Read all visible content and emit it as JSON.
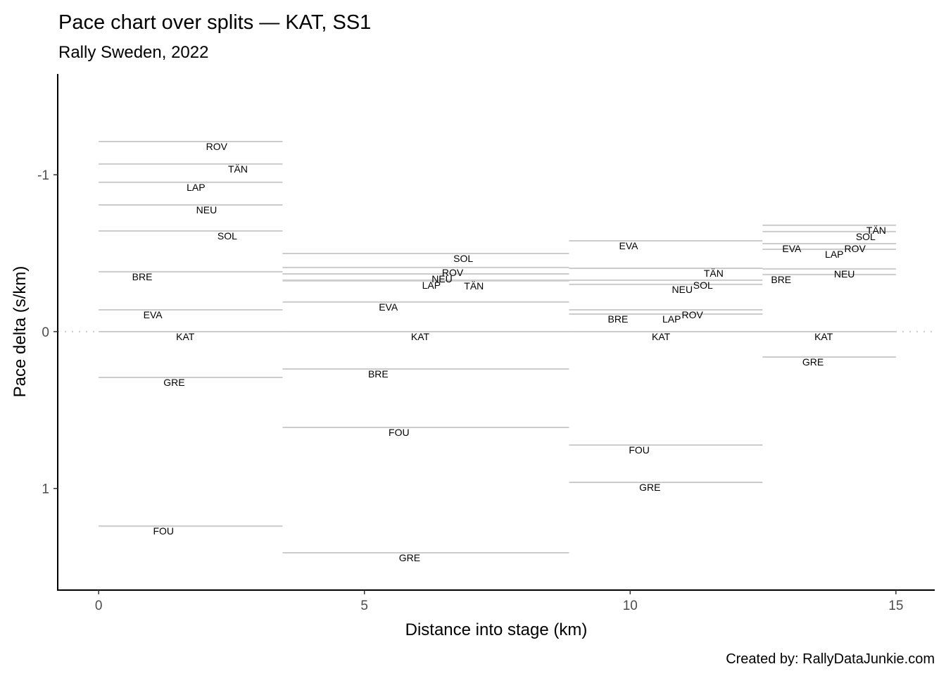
{
  "chart_data": {
    "type": "line",
    "title": "Pace chart over splits — KAT, SS1",
    "subtitle": "Rally Sweden, 2022",
    "xlabel": "Distance into stage (km)",
    "ylabel": "Pace delta (s/km)",
    "caption": "Created by: RallyDataJunkie.com",
    "xlim": [
      -0.77,
      15.73
    ],
    "ylim": [
      -1.643,
      1.648
    ],
    "y_reversed": true,
    "x_ticks": [
      0,
      5,
      10,
      15
    ],
    "x_tick_labels": [
      "0",
      "5",
      "10",
      "15"
    ],
    "y_ticks": [
      -1,
      0,
      1
    ],
    "y_tick_labels": [
      "-1",
      "0",
      "1"
    ],
    "reference_line": 0,
    "grid": false,
    "colors": {
      "segment": "#cccccc",
      "reference": "#cccccc",
      "axis": "#000000",
      "text": "#000000"
    },
    "splits": [
      {
        "start": 0,
        "end": 3.46,
        "drivers": [
          {
            "name": "ROV",
            "value": -1.212,
            "label_x": 2.22
          },
          {
            "name": "TÄN",
            "value": -1.069,
            "label_x": 2.62
          },
          {
            "name": "LAP",
            "value": -0.952,
            "label_x": 1.83
          },
          {
            "name": "NEU",
            "value": -0.808,
            "label_x": 2.03
          },
          {
            "name": "SOL",
            "value": -0.642,
            "label_x": 2.42
          },
          {
            "name": "BRE",
            "value": -0.382,
            "label_x": 0.82
          },
          {
            "name": "EVA",
            "value": -0.139,
            "label_x": 1.02
          },
          {
            "name": "KAT",
            "value": 0,
            "label_x": 1.63
          },
          {
            "name": "GRE",
            "value": 0.292,
            "label_x": 1.42
          },
          {
            "name": "FOU",
            "value": 1.24,
            "label_x": 1.22
          }
        ]
      },
      {
        "start": 3.46,
        "end": 8.85,
        "drivers": [
          {
            "name": "SOL",
            "value": -0.498,
            "label_x": 6.86
          },
          {
            "name": "ROV",
            "value": -0.409,
            "label_x": 6.66
          },
          {
            "name": "NEU",
            "value": -0.368,
            "label_x": 6.46
          },
          {
            "name": "LAP",
            "value": -0.328,
            "label_x": 6.26
          },
          {
            "name": "TÄN",
            "value": -0.324,
            "label_x": 7.06
          },
          {
            "name": "EVA",
            "value": -0.189,
            "label_x": 5.45
          },
          {
            "name": "KAT",
            "value": 0,
            "label_x": 6.05
          },
          {
            "name": "BRE",
            "value": 0.238,
            "label_x": 5.26
          },
          {
            "name": "FOU",
            "value": 0.611,
            "label_x": 5.65
          },
          {
            "name": "GRE",
            "value": 1.41,
            "label_x": 5.85
          }
        ]
      },
      {
        "start": 8.85,
        "end": 12.49,
        "drivers": [
          {
            "name": "EVA",
            "value": -0.579,
            "label_x": 9.97
          },
          {
            "name": "TÄN",
            "value": -0.404,
            "label_x": 11.57
          },
          {
            "name": "SOL",
            "value": -0.328,
            "label_x": 11.37
          },
          {
            "name": "NEU",
            "value": -0.301,
            "label_x": 10.98
          },
          {
            "name": "ROV",
            "value": -0.139,
            "label_x": 11.17
          },
          {
            "name": "LAP",
            "value": -0.112,
            "label_x": 10.78
          },
          {
            "name": "BRE",
            "value": -0.112,
            "label_x": 9.77
          },
          {
            "name": "KAT",
            "value": 0,
            "label_x": 10.58
          },
          {
            "name": "FOU",
            "value": 0.723,
            "label_x": 10.17
          },
          {
            "name": "GRE",
            "value": 0.961,
            "label_x": 10.37
          }
        ]
      },
      {
        "start": 12.49,
        "end": 15,
        "drivers": [
          {
            "name": "TÄN",
            "value": -0.678,
            "label_x": 14.63
          },
          {
            "name": "SOL",
            "value": -0.638,
            "label_x": 14.43
          },
          {
            "name": "ROV",
            "value": -0.561,
            "label_x": 14.23
          },
          {
            "name": "EVA",
            "value": -0.561,
            "label_x": 13.04
          },
          {
            "name": "LAP",
            "value": -0.525,
            "label_x": 13.84
          },
          {
            "name": "NEU",
            "value": -0.4,
            "label_x": 14.03
          },
          {
            "name": "BRE",
            "value": -0.364,
            "label_x": 12.84
          },
          {
            "name": "KAT",
            "value": 0,
            "label_x": 13.64
          },
          {
            "name": "GRE",
            "value": 0.162,
            "label_x": 13.44
          }
        ]
      }
    ]
  }
}
